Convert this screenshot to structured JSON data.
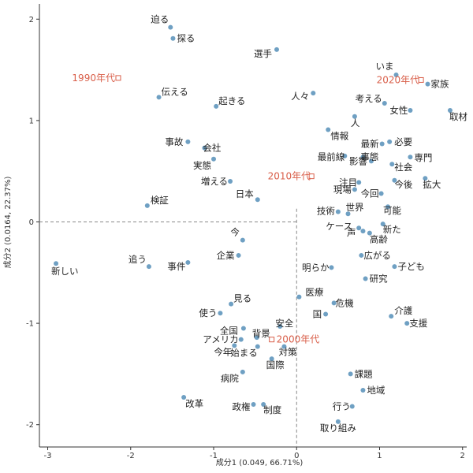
{
  "chart_data": {
    "type": "scatter",
    "xlabel": "成分1 (0.049, 66.71%)",
    "ylabel": "成分2 (0.0164, 22.37%)",
    "xlim": [
      -3.1,
      2.05
    ],
    "ylim": [
      -2.22,
      2.15
    ],
    "xticks": [
      -3,
      -2,
      -1,
      0,
      1,
      2
    ],
    "yticks": [
      -2,
      -1,
      0,
      1,
      2
    ],
    "reference_lines": {
      "x": 0,
      "y": 0,
      "style": "dashed"
    },
    "grid": false,
    "point_color": "#6fa0c3",
    "supplementary_color": "#d95f4a",
    "points": [
      {
        "label": "迫る",
        "x": -1.52,
        "y": 1.92
      },
      {
        "label": "探る",
        "x": -1.49,
        "y": 1.81
      },
      {
        "label": "選手",
        "x": -0.24,
        "y": 1.7
      },
      {
        "label": "伝える",
        "x": -1.66,
        "y": 1.23
      },
      {
        "label": "起きる",
        "x": -0.97,
        "y": 1.14
      },
      {
        "label": "人々",
        "x": 0.2,
        "y": 1.27
      },
      {
        "label": "いま",
        "x": 1.2,
        "y": 1.45
      },
      {
        "label": "家族",
        "x": 1.58,
        "y": 1.36
      },
      {
        "label": "考える",
        "x": 1.06,
        "y": 1.17
      },
      {
        "label": "女性",
        "x": 1.37,
        "y": 1.1
      },
      {
        "label": "取材",
        "x": 1.85,
        "y": 1.1
      },
      {
        "label": "人",
        "x": 0.7,
        "y": 1.04
      },
      {
        "label": "情報",
        "x": 0.38,
        "y": 0.91
      },
      {
        "label": "必要",
        "x": 1.12,
        "y": 0.79
      },
      {
        "label": "最新",
        "x": 1.03,
        "y": 0.77
      },
      {
        "label": "事故",
        "x": -1.31,
        "y": 0.79
      },
      {
        "label": "会社",
        "x": -1.11,
        "y": 0.73
      },
      {
        "label": "最前線",
        "x": 0.58,
        "y": 0.65
      },
      {
        "label": "事態",
        "x": 0.8,
        "y": 0.64
      },
      {
        "label": "影響",
        "x": 0.9,
        "y": 0.6
      },
      {
        "label": "専門",
        "x": 1.37,
        "y": 0.64
      },
      {
        "label": "実態",
        "x": -1.0,
        "y": 0.62
      },
      {
        "label": "社会",
        "x": 1.15,
        "y": 0.57
      },
      {
        "label": "今後",
        "x": 1.18,
        "y": 0.41
      },
      {
        "label": "拡大",
        "x": 1.55,
        "y": 0.43
      },
      {
        "label": "増える",
        "x": -0.8,
        "y": 0.4
      },
      {
        "label": "注目",
        "x": 0.75,
        "y": 0.39
      },
      {
        "label": "現場",
        "x": 0.7,
        "y": 0.32
      },
      {
        "label": "日本",
        "x": -0.47,
        "y": 0.22
      },
      {
        "label": "今回",
        "x": 1.02,
        "y": 0.28
      },
      {
        "label": "可能",
        "x": 1.1,
        "y": 0.15
      },
      {
        "label": "検証",
        "x": -1.8,
        "y": 0.16
      },
      {
        "label": "技術",
        "x": 0.5,
        "y": 0.1
      },
      {
        "label": "世界",
        "x": 0.62,
        "y": 0.08
      },
      {
        "label": "ケース",
        "x": 0.75,
        "y": -0.06
      },
      {
        "label": "新た",
        "x": 1.04,
        "y": -0.02
      },
      {
        "label": "声",
        "x": 0.8,
        "y": -0.09
      },
      {
        "label": "高齢",
        "x": 0.88,
        "y": -0.11
      },
      {
        "label": "今",
        "x": -0.65,
        "y": -0.18
      },
      {
        "label": "企業",
        "x": -0.7,
        "y": -0.33
      },
      {
        "label": "広がる",
        "x": 0.78,
        "y": -0.33
      },
      {
        "label": "追う",
        "x": -1.78,
        "y": -0.44
      },
      {
        "label": "事件",
        "x": -1.31,
        "y": -0.4
      },
      {
        "label": "新しい",
        "x": -2.9,
        "y": -0.41
      },
      {
        "label": "明らか",
        "x": 0.42,
        "y": -0.45
      },
      {
        "label": "子ども",
        "x": 1.18,
        "y": -0.44
      },
      {
        "label": "研究",
        "x": 0.83,
        "y": -0.56
      },
      {
        "label": "医療",
        "x": 0.03,
        "y": -0.74
      },
      {
        "label": "見る",
        "x": -0.79,
        "y": -0.81
      },
      {
        "label": "危機",
        "x": 0.45,
        "y": -0.8
      },
      {
        "label": "国",
        "x": 0.35,
        "y": -0.91
      },
      {
        "label": "使う",
        "x": -0.92,
        "y": -0.9
      },
      {
        "label": "介護",
        "x": 1.14,
        "y": -0.93
      },
      {
        "label": "支援",
        "x": 1.33,
        "y": -1.0
      },
      {
        "label": "全国",
        "x": -0.64,
        "y": -1.05
      },
      {
        "label": "安全",
        "x": -0.2,
        "y": -1.03
      },
      {
        "label": "アメリカ",
        "x": -0.67,
        "y": -1.16
      },
      {
        "label": "背景",
        "x": -0.48,
        "y": -1.14
      },
      {
        "label": "今年",
        "x": -0.75,
        "y": -1.22
      },
      {
        "label": "始まる",
        "x": -0.47,
        "y": -1.23
      },
      {
        "label": "対策",
        "x": -0.15,
        "y": -1.23
      },
      {
        "label": "国際",
        "x": -0.3,
        "y": -1.35
      },
      {
        "label": "病院",
        "x": -0.65,
        "y": -1.48
      },
      {
        "label": "課題",
        "x": 0.65,
        "y": -1.5
      },
      {
        "label": "地域",
        "x": 0.8,
        "y": -1.66
      },
      {
        "label": "改革",
        "x": -1.36,
        "y": -1.73
      },
      {
        "label": "政権",
        "x": -0.52,
        "y": -1.8
      },
      {
        "label": "制度",
        "x": -0.4,
        "y": -1.8
      },
      {
        "label": "行う",
        "x": 0.67,
        "y": -1.82
      },
      {
        "label": "取り組み",
        "x": 0.5,
        "y": -1.97
      }
    ],
    "supplementary": [
      {
        "label": "1990年代",
        "x": -2.15,
        "y": 1.42
      },
      {
        "label": "2020年代",
        "x": 1.5,
        "y": 1.4
      },
      {
        "label": "2010年代",
        "x": 0.18,
        "y": 0.45
      },
      {
        "label": "2000年代",
        "x": -0.3,
        "y": -1.16
      }
    ]
  }
}
